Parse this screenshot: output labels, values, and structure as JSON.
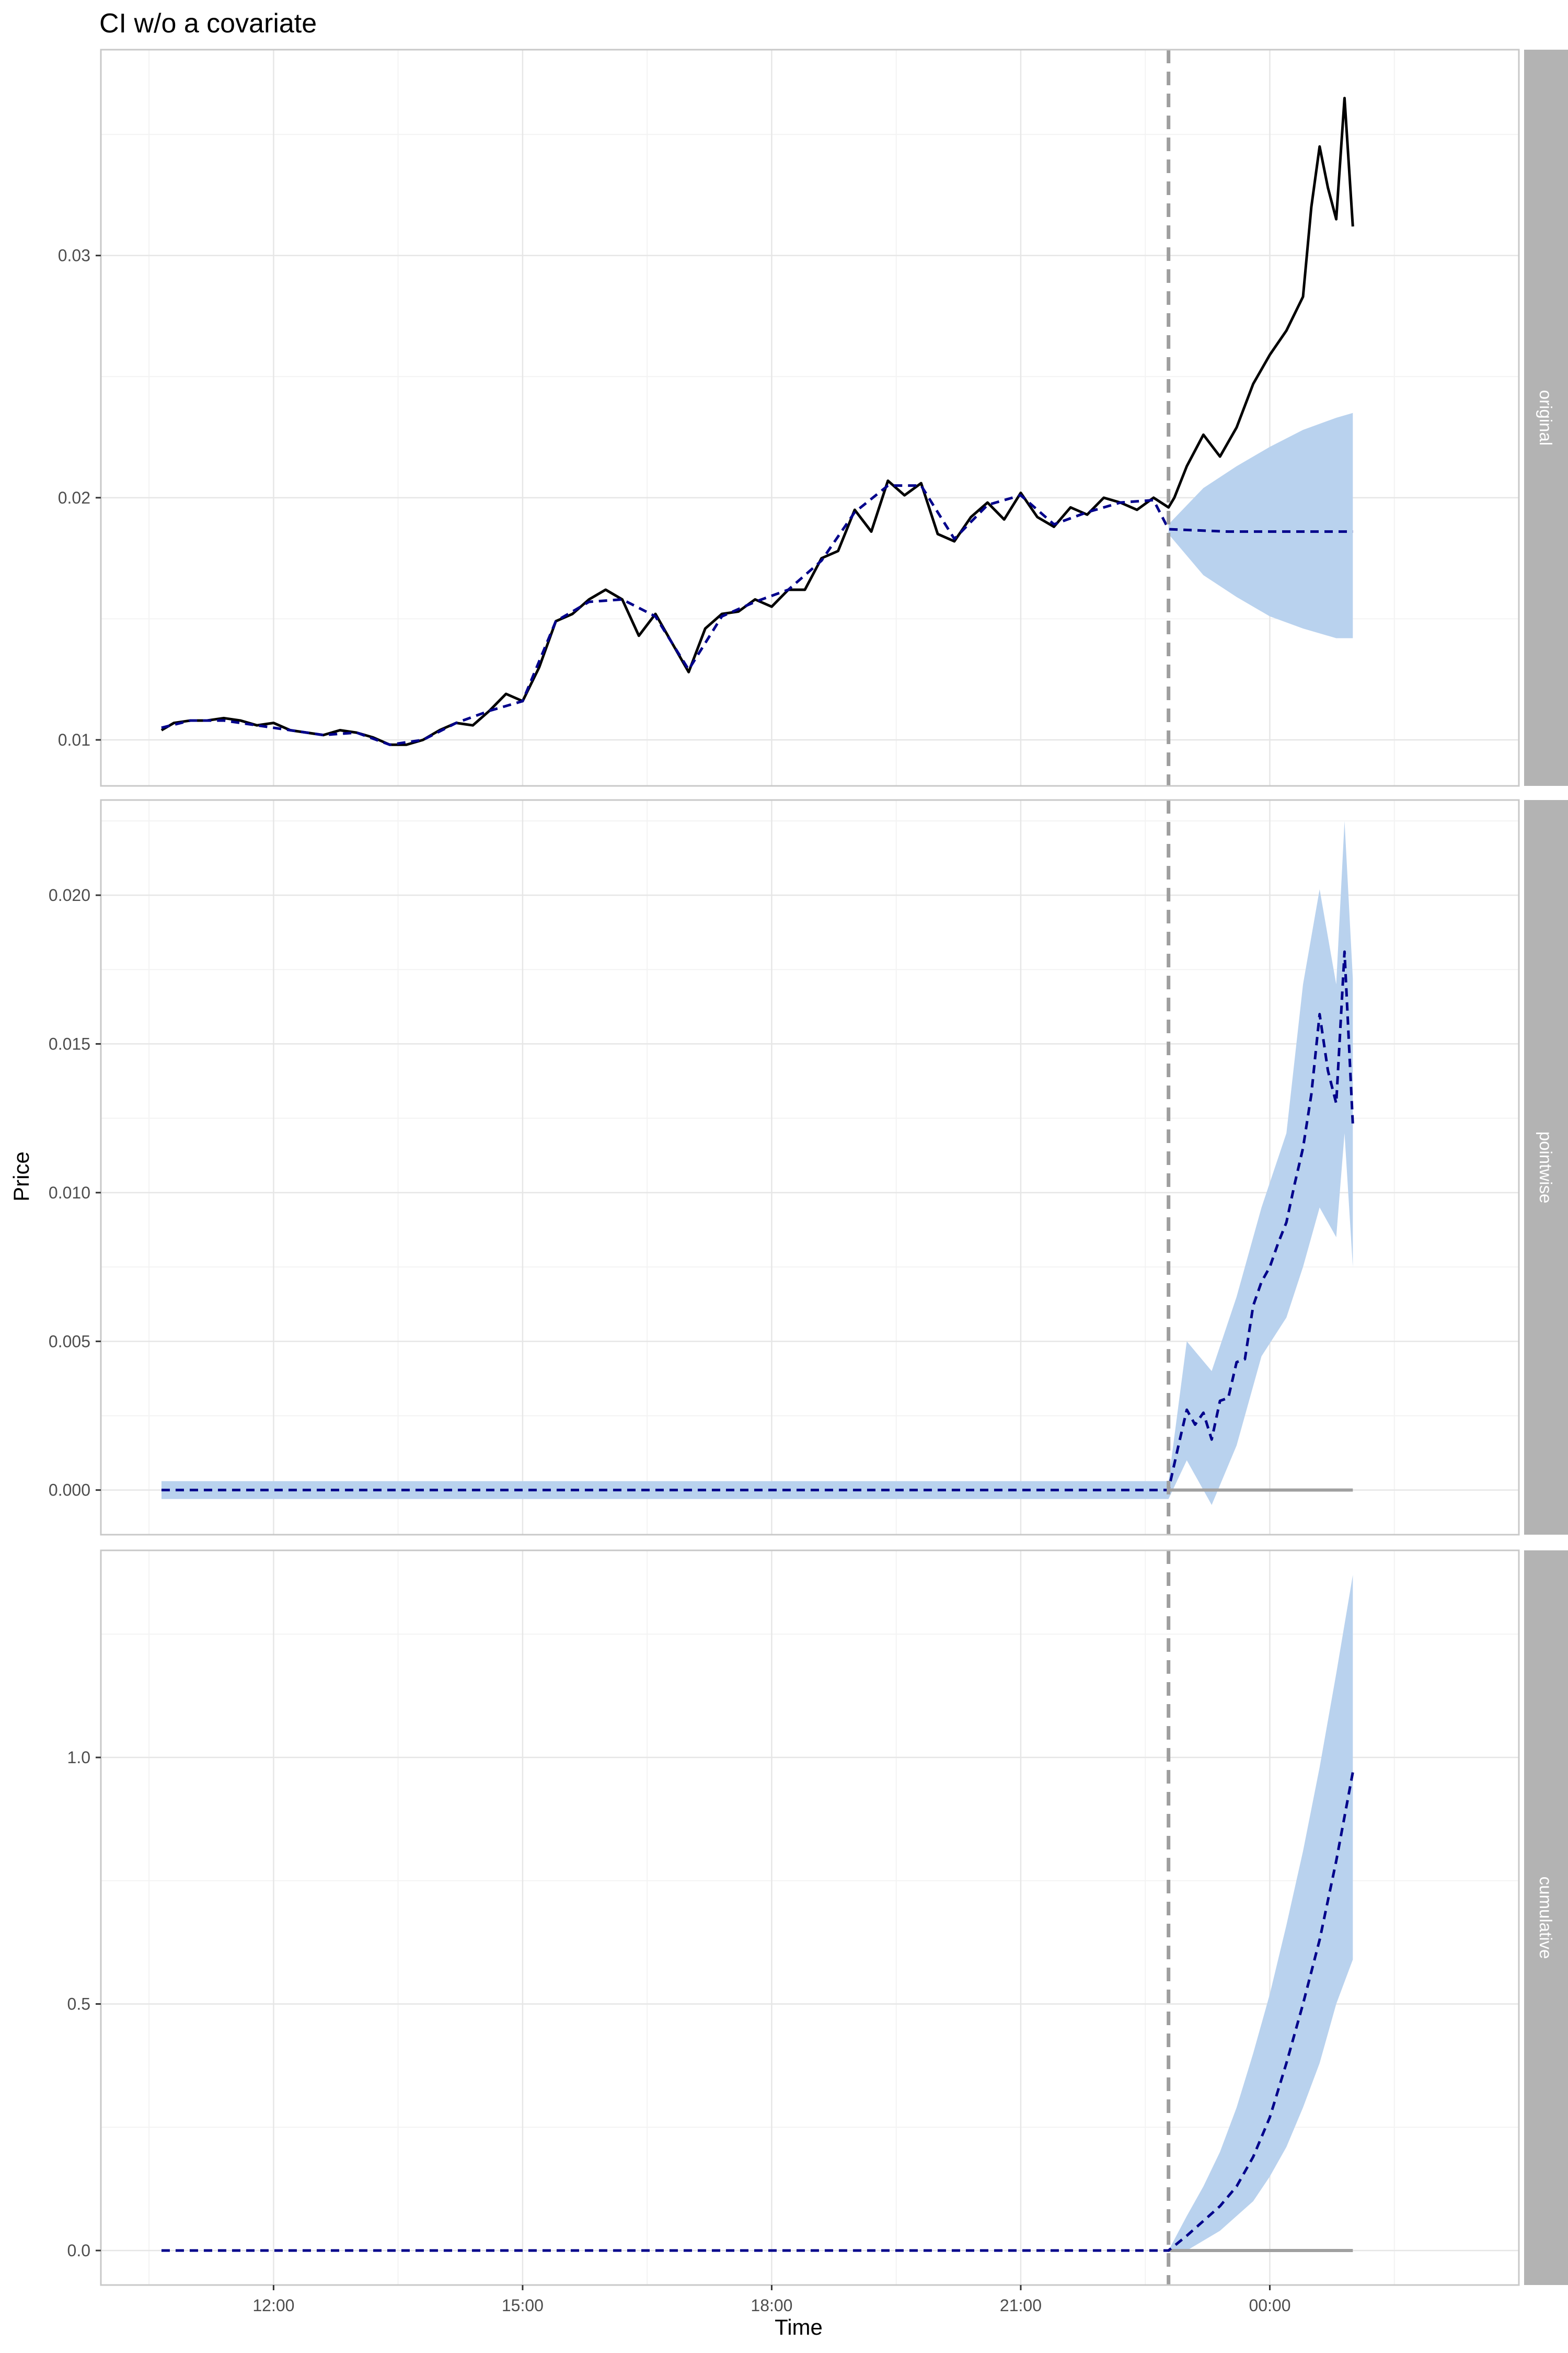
{
  "title": "CI w/o a covariate",
  "xlabel": "Time",
  "ylabel": "Price",
  "colors": {
    "observed": "#000000",
    "predicted": "#00008b",
    "ribbon": "#b9d2ee",
    "intervention": "#9e9e9e",
    "zero_line": "#a0a0a0",
    "strip": "#b3b3b3",
    "grid_major": "#e6e6e6",
    "grid_minor": "#f3f3f3",
    "panel_border": "#c8c8c8"
  },
  "chart_data": {
    "type": "line",
    "x_unit": "hours since 00:00 of first day",
    "x_range": [
      9.92,
      27.0
    ],
    "x_ticks": [
      12,
      15,
      18,
      21,
      24
    ],
    "x_tick_labels": [
      "12:00",
      "15:00",
      "18:00",
      "21:00",
      "00:00"
    ],
    "intervention_time": 22.78,
    "end_time": 25.0,
    "panels": [
      {
        "name": "original",
        "ylim": [
          0.0081,
          0.0385
        ],
        "y_ticks": [
          0.01,
          0.02,
          0.03
        ],
        "y_tick_labels": [
          "0.01",
          "0.02",
          "0.03"
        ],
        "series": {
          "observed": [
            [
              10.65,
              0.0104
            ],
            [
              10.8,
              0.0107
            ],
            [
              11.0,
              0.0108
            ],
            [
              11.2,
              0.0108
            ],
            [
              11.4,
              0.0109
            ],
            [
              11.6,
              0.0108
            ],
            [
              11.8,
              0.0106
            ],
            [
              12.0,
              0.0107
            ],
            [
              12.2,
              0.0104
            ],
            [
              12.4,
              0.0103
            ],
            [
              12.6,
              0.0102
            ],
            [
              12.8,
              0.0104
            ],
            [
              13.0,
              0.0103
            ],
            [
              13.2,
              0.0101
            ],
            [
              13.4,
              0.0098
            ],
            [
              13.6,
              0.0098
            ],
            [
              13.8,
              0.01
            ],
            [
              14.0,
              0.0104
            ],
            [
              14.2,
              0.0107
            ],
            [
              14.4,
              0.0106
            ],
            [
              14.6,
              0.0112
            ],
            [
              14.8,
              0.0119
            ],
            [
              15.0,
              0.0116
            ],
            [
              15.2,
              0.013
            ],
            [
              15.4,
              0.0149
            ],
            [
              15.6,
              0.0152
            ],
            [
              15.8,
              0.0158
            ],
            [
              16.0,
              0.0162
            ],
            [
              16.2,
              0.0158
            ],
            [
              16.4,
              0.0143
            ],
            [
              16.6,
              0.0152
            ],
            [
              16.8,
              0.014
            ],
            [
              17.0,
              0.0128
            ],
            [
              17.2,
              0.0146
            ],
            [
              17.4,
              0.0152
            ],
            [
              17.6,
              0.0153
            ],
            [
              17.8,
              0.0158
            ],
            [
              18.0,
              0.0155
            ],
            [
              18.2,
              0.0162
            ],
            [
              18.4,
              0.0162
            ],
            [
              18.6,
              0.0175
            ],
            [
              18.8,
              0.0178
            ],
            [
              19.0,
              0.0195
            ],
            [
              19.2,
              0.0186
            ],
            [
              19.4,
              0.0207
            ],
            [
              19.6,
              0.0201
            ],
            [
              19.8,
              0.0206
            ],
            [
              20.0,
              0.0185
            ],
            [
              20.2,
              0.0182
            ],
            [
              20.4,
              0.0192
            ],
            [
              20.6,
              0.0198
            ],
            [
              20.8,
              0.0191
            ],
            [
              21.0,
              0.0202
            ],
            [
              21.2,
              0.0192
            ],
            [
              21.4,
              0.0188
            ],
            [
              21.6,
              0.0196
            ],
            [
              21.8,
              0.0193
            ],
            [
              22.0,
              0.02
            ],
            [
              22.2,
              0.0198
            ],
            [
              22.4,
              0.0195
            ],
            [
              22.6,
              0.02
            ],
            [
              22.78,
              0.0196
            ],
            [
              22.85,
              0.02
            ],
            [
              23.0,
              0.0213
            ],
            [
              23.2,
              0.0226
            ],
            [
              23.4,
              0.0217
            ],
            [
              23.6,
              0.0229
            ],
            [
              23.8,
              0.0247
            ],
            [
              24.0,
              0.0259
            ],
            [
              24.2,
              0.0269
            ],
            [
              24.4,
              0.0283
            ],
            [
              24.5,
              0.032
            ],
            [
              24.6,
              0.0345
            ],
            [
              24.7,
              0.0328
            ],
            [
              24.8,
              0.0315
            ],
            [
              24.9,
              0.0365
            ],
            [
              25.0,
              0.0312
            ]
          ],
          "predicted": [
            [
              10.65,
              0.0105
            ],
            [
              11.0,
              0.0108
            ],
            [
              11.4,
              0.0108
            ],
            [
              11.8,
              0.0106
            ],
            [
              12.2,
              0.0104
            ],
            [
              12.6,
              0.0102
            ],
            [
              13.0,
              0.0103
            ],
            [
              13.4,
              0.0098
            ],
            [
              13.8,
              0.01
            ],
            [
              14.2,
              0.0107
            ],
            [
              14.6,
              0.0112
            ],
            [
              15.0,
              0.0116
            ],
            [
              15.4,
              0.0149
            ],
            [
              15.8,
              0.0157
            ],
            [
              16.2,
              0.0158
            ],
            [
              16.6,
              0.0151
            ],
            [
              17.0,
              0.0129
            ],
            [
              17.4,
              0.0151
            ],
            [
              17.8,
              0.0157
            ],
            [
              18.2,
              0.0162
            ],
            [
              18.6,
              0.0174
            ],
            [
              19.0,
              0.0194
            ],
            [
              19.4,
              0.0205
            ],
            [
              19.8,
              0.0205
            ],
            [
              20.2,
              0.0183
            ],
            [
              20.6,
              0.0197
            ],
            [
              21.0,
              0.0201
            ],
            [
              21.4,
              0.0189
            ],
            [
              21.8,
              0.0194
            ],
            [
              22.2,
              0.0198
            ],
            [
              22.6,
              0.0199
            ],
            [
              22.78,
              0.0187
            ],
            [
              23.5,
              0.0186
            ],
            [
              24.0,
              0.0186
            ],
            [
              24.5,
              0.0186
            ],
            [
              25.0,
              0.0186
            ]
          ],
          "ribbon_upper": [
            [
              22.78,
              0.0189
            ],
            [
              23.2,
              0.0204
            ],
            [
              23.6,
              0.0213
            ],
            [
              24.0,
              0.0221
            ],
            [
              24.4,
              0.0228
            ],
            [
              24.8,
              0.0233
            ],
            [
              25.0,
              0.0235
            ]
          ],
          "ribbon_lower": [
            [
              22.78,
              0.0185
            ],
            [
              23.2,
              0.0168
            ],
            [
              23.6,
              0.0159
            ],
            [
              24.0,
              0.0151
            ],
            [
              24.4,
              0.0146
            ],
            [
              24.8,
              0.0142
            ],
            [
              25.0,
              0.0142
            ]
          ]
        }
      },
      {
        "name": "pointwise",
        "ylim": [
          -0.0015,
          0.0232
        ],
        "y_ticks": [
          0.0,
          0.005,
          0.01,
          0.015,
          0.02
        ],
        "y_tick_labels": [
          "0.000",
          "0.005",
          "0.010",
          "0.015",
          "0.020"
        ],
        "series": {
          "zero": [
            [
              22.78,
              0.0
            ],
            [
              25.0,
              0.0
            ]
          ],
          "predicted": [
            [
              10.65,
              0.0
            ],
            [
              12.0,
              0.0
            ],
            [
              14.0,
              0.0
            ],
            [
              16.0,
              0.0
            ],
            [
              18.0,
              0.0
            ],
            [
              20.0,
              0.0
            ],
            [
              22.0,
              0.0
            ],
            [
              22.78,
              0.0
            ],
            [
              22.9,
              0.0015
            ],
            [
              23.0,
              0.0027
            ],
            [
              23.1,
              0.0022
            ],
            [
              23.2,
              0.0026
            ],
            [
              23.3,
              0.0017
            ],
            [
              23.4,
              0.003
            ],
            [
              23.5,
              0.0031
            ],
            [
              23.6,
              0.0043
            ],
            [
              23.7,
              0.0044
            ],
            [
              23.8,
              0.0062
            ],
            [
              23.9,
              0.007
            ],
            [
              24.0,
              0.0075
            ],
            [
              24.1,
              0.0083
            ],
            [
              24.2,
              0.009
            ],
            [
              24.3,
              0.0103
            ],
            [
              24.4,
              0.0115
            ],
            [
              24.5,
              0.0133
            ],
            [
              24.6,
              0.016
            ],
            [
              24.7,
              0.0141
            ],
            [
              24.8,
              0.013
            ],
            [
              24.9,
              0.0181
            ],
            [
              25.0,
              0.0123
            ]
          ],
          "ribbon_upper": [
            [
              10.65,
              0.0003
            ],
            [
              22.78,
              0.0003
            ],
            [
              23.0,
              0.005
            ],
            [
              23.3,
              0.004
            ],
            [
              23.6,
              0.0065
            ],
            [
              23.9,
              0.0095
            ],
            [
              24.2,
              0.012
            ],
            [
              24.4,
              0.017
            ],
            [
              24.6,
              0.0202
            ],
            [
              24.8,
              0.017
            ],
            [
              24.9,
              0.0225
            ],
            [
              25.0,
              0.0172
            ]
          ],
          "ribbon_lower": [
            [
              10.65,
              -0.0003
            ],
            [
              22.78,
              -0.0003
            ],
            [
              23.0,
              0.001
            ],
            [
              23.3,
              -0.0005
            ],
            [
              23.6,
              0.0015
            ],
            [
              23.9,
              0.0045
            ],
            [
              24.2,
              0.0058
            ],
            [
              24.4,
              0.0075
            ],
            [
              24.6,
              0.0095
            ],
            [
              24.8,
              0.0085
            ],
            [
              24.9,
              0.012
            ],
            [
              25.0,
              0.0075
            ]
          ]
        }
      },
      {
        "name": "cumulative",
        "ylim": [
          -0.07,
          1.42
        ],
        "y_ticks": [
          0.0,
          0.5,
          1.0
        ],
        "y_tick_labels": [
          "0.0",
          "0.5",
          "1.0"
        ],
        "series": {
          "zero": [
            [
              22.78,
              0.0
            ],
            [
              25.0,
              0.0
            ]
          ],
          "predicted": [
            [
              10.65,
              0.0
            ],
            [
              14.0,
              0.0
            ],
            [
              18.0,
              0.0
            ],
            [
              22.0,
              0.0
            ],
            [
              22.78,
              0.0
            ],
            [
              23.0,
              0.03
            ],
            [
              23.2,
              0.06
            ],
            [
              23.4,
              0.09
            ],
            [
              23.6,
              0.13
            ],
            [
              23.8,
              0.19
            ],
            [
              24.0,
              0.27
            ],
            [
              24.2,
              0.38
            ],
            [
              24.4,
              0.5
            ],
            [
              24.6,
              0.63
            ],
            [
              24.8,
              0.79
            ],
            [
              25.0,
              0.97
            ]
          ],
          "ribbon_upper": [
            [
              22.78,
              0.0
            ],
            [
              23.0,
              0.07
            ],
            [
              23.2,
              0.13
            ],
            [
              23.4,
              0.2
            ],
            [
              23.6,
              0.29
            ],
            [
              23.8,
              0.4
            ],
            [
              24.0,
              0.52
            ],
            [
              24.2,
              0.66
            ],
            [
              24.4,
              0.81
            ],
            [
              24.6,
              0.98
            ],
            [
              24.8,
              1.17
            ],
            [
              25.0,
              1.37
            ]
          ],
          "ribbon_lower": [
            [
              22.78,
              0.0
            ],
            [
              23.0,
              0.0
            ],
            [
              23.2,
              0.02
            ],
            [
              23.4,
              0.04
            ],
            [
              23.6,
              0.07
            ],
            [
              23.8,
              0.1
            ],
            [
              24.0,
              0.15
            ],
            [
              24.2,
              0.21
            ],
            [
              24.4,
              0.29
            ],
            [
              24.6,
              0.38
            ],
            [
              24.8,
              0.5
            ],
            [
              25.0,
              0.59
            ]
          ]
        }
      }
    ]
  }
}
